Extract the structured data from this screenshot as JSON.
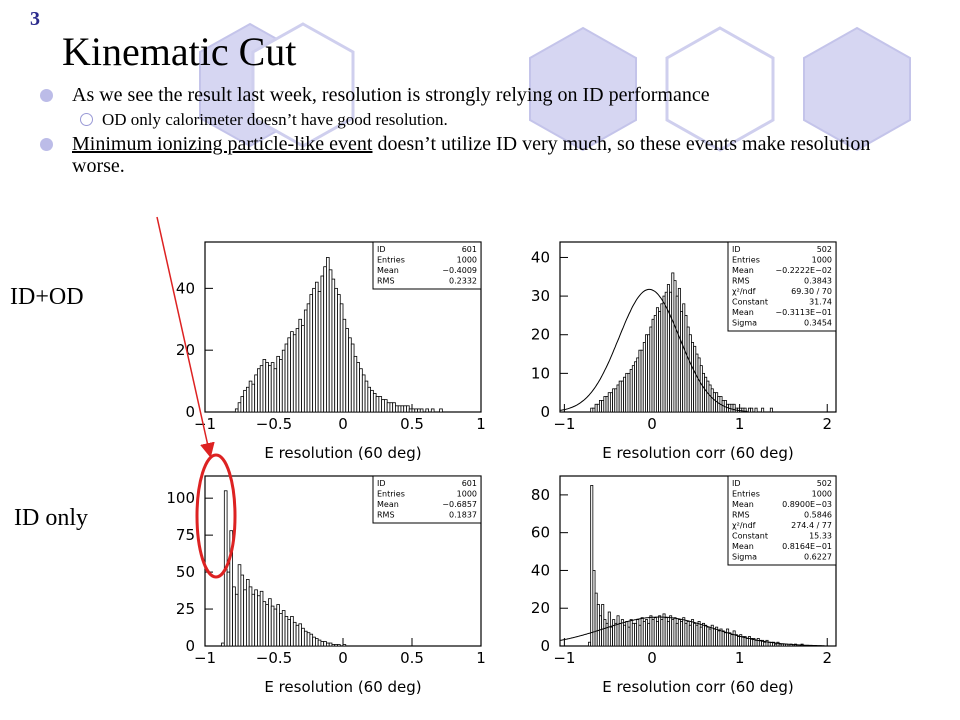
{
  "slide": {
    "number": "3",
    "title": "Kinematic Cut",
    "bullets": [
      {
        "level": 1,
        "text": "As we see the result last week, resolution is strongly relying on ID performance"
      },
      {
        "level": 2,
        "text": "OD only calorimeter doesn’t have good resolution."
      },
      {
        "level": 1,
        "text_underlined": "Minimum ionizing particle-like event",
        "text_rest": " doesn’t utilize ID very much, so these events make resolution worse."
      }
    ],
    "row_labels": [
      "ID+OD",
      "ID only"
    ],
    "colors": {
      "accent": "#2a2a8c",
      "hexagon_fill": "#d6d6f2",
      "hexagon_stroke": "#c4c4ea",
      "annotation": "#dd2222"
    }
  },
  "chart_data": [
    {
      "type": "histogram",
      "xlabel": "E resolution (60 deg)",
      "xlim": [
        -1,
        1
      ],
      "ylim": [
        0,
        55
      ],
      "xticks": [
        -1,
        -0.5,
        0,
        0.5,
        1
      ],
      "xtick_labels": [
        "−1",
        "−0.5",
        "0",
        "0.5",
        "1"
      ],
      "yticks": [
        0,
        20,
        40
      ],
      "ytick_labels": [
        "0",
        "20",
        "40"
      ],
      "stats": [
        [
          "ID",
          "601"
        ],
        [
          "Entries",
          "1000"
        ],
        [
          "Mean",
          "−0.4009"
        ],
        [
          "RMS",
          "0.2332"
        ]
      ],
      "bin_edges_from": -1.0,
      "bin_width": 0.02,
      "values": [
        0,
        0,
        0,
        0,
        0,
        0,
        0,
        0,
        0,
        0,
        0,
        1,
        3,
        5,
        7,
        8,
        10,
        9,
        12,
        14,
        15,
        17,
        16,
        15,
        16,
        14,
        18,
        17,
        20,
        22,
        24,
        26,
        25,
        27,
        30,
        28,
        33,
        35,
        38,
        40,
        42,
        39,
        44,
        47,
        50,
        46,
        43,
        40,
        38,
        35,
        30,
        27,
        24,
        22,
        18,
        16,
        14,
        12,
        10,
        8,
        7,
        6,
        5,
        5,
        4,
        4,
        3,
        3,
        3,
        2,
        2,
        2,
        2,
        2,
        1,
        1,
        1,
        1,
        1,
        0,
        1,
        0,
        1,
        0,
        0,
        1,
        0,
        0,
        0,
        0,
        0,
        0,
        0,
        0,
        0,
        0,
        0,
        0,
        0,
        0
      ]
    },
    {
      "type": "histogram",
      "xlabel": "E resolution corr (60 deg)",
      "xlim": [
        -1.05,
        2.1
      ],
      "ylim": [
        0,
        44
      ],
      "xticks": [
        -1,
        0,
        1,
        2
      ],
      "xtick_labels": [
        "−1",
        "0",
        "1",
        "2"
      ],
      "yticks": [
        0,
        10,
        20,
        30,
        40
      ],
      "ytick_labels": [
        "0",
        "10",
        "20",
        "30",
        "40"
      ],
      "stats": [
        [
          "ID",
          "502"
        ],
        [
          "Entries",
          "1000"
        ],
        [
          "Mean",
          "−0.2222E−02"
        ],
        [
          "RMS",
          "0.3843"
        ],
        [
          "χ²/ndf",
          "69.30  /  70"
        ],
        [
          "Constant",
          "31.74"
        ],
        [
          "Mean",
          "−0.3113E−01"
        ],
        [
          "Sigma",
          "0.3454"
        ]
      ],
      "fit": {
        "function": "gaussian",
        "constant": 31.74,
        "mean": -0.03113,
        "sigma": 0.3454
      },
      "bin_edges_from": -1.0,
      "bin_width": 0.025,
      "values": [
        0,
        0,
        0,
        0,
        0,
        0,
        0,
        0,
        0,
        0,
        0,
        0,
        1,
        1,
        2,
        2,
        3,
        3,
        4,
        4,
        5,
        5,
        6,
        6,
        7,
        8,
        8,
        9,
        10,
        10,
        11,
        12,
        13,
        14,
        16,
        16,
        18,
        20,
        20,
        22,
        24,
        25,
        27,
        26,
        28,
        30,
        31,
        33,
        31,
        36,
        34,
        30,
        32,
        26,
        28,
        25,
        22,
        20,
        18,
        17,
        15,
        14,
        12,
        10,
        9,
        8,
        7,
        6,
        5,
        5,
        4,
        4,
        3,
        3,
        2,
        2,
        2,
        2,
        1,
        1,
        1,
        1,
        1,
        0,
        1,
        1,
        0,
        1,
        0,
        0,
        1,
        0,
        0,
        0,
        1,
        0,
        0,
        0,
        0,
        0,
        0,
        0,
        0,
        0,
        0,
        0,
        0,
        0,
        0,
        0,
        0,
        0,
        0,
        0,
        0,
        0,
        0,
        0,
        0,
        0
      ]
    },
    {
      "type": "histogram",
      "xlabel": "E resolution (60 deg)",
      "xlim": [
        -1,
        1
      ],
      "ylim": [
        0,
        115
      ],
      "xticks": [
        -1,
        -0.5,
        0,
        0.5,
        1
      ],
      "xtick_labels": [
        "−1",
        "−0.5",
        "0",
        "0.5",
        "1"
      ],
      "yticks": [
        0,
        25,
        50,
        75,
        100
      ],
      "ytick_labels": [
        "0",
        "25",
        "50",
        "75",
        "100"
      ],
      "stats": [
        [
          "ID",
          "601"
        ],
        [
          "Entries",
          "1000"
        ],
        [
          "Mean",
          "−0.6857"
        ],
        [
          "RMS",
          "0.1837"
        ]
      ],
      "bin_edges_from": -1.0,
      "bin_width": 0.02,
      "values": [
        0,
        0,
        0,
        0,
        0,
        0,
        2,
        105,
        50,
        78,
        40,
        35,
        55,
        48,
        38,
        45,
        40,
        35,
        38,
        34,
        37,
        30,
        28,
        32,
        27,
        25,
        28,
        22,
        24,
        20,
        18,
        20,
        16,
        14,
        15,
        12,
        10,
        9,
        8,
        6,
        5,
        4,
        3,
        3,
        2,
        2,
        1,
        1,
        1,
        0,
        1,
        0,
        0,
        0,
        0,
        0,
        0,
        0,
        0,
        0,
        0,
        0,
        0,
        0,
        0,
        0,
        0,
        0,
        0,
        0,
        0,
        0,
        0,
        0,
        0,
        0,
        0,
        0,
        0,
        0,
        0,
        0,
        0,
        0,
        0,
        0,
        0,
        0,
        0,
        0,
        0,
        0,
        0,
        0,
        0,
        0,
        0,
        0,
        0,
        0
      ]
    },
    {
      "type": "histogram",
      "xlabel": "E resolution corr (60 deg)",
      "xlim": [
        -1.05,
        2.1
      ],
      "ylim": [
        0,
        90
      ],
      "xticks": [
        -1,
        0,
        1,
        2
      ],
      "xtick_labels": [
        "−1",
        "0",
        "1",
        "2"
      ],
      "yticks": [
        0,
        20,
        40,
        60,
        80
      ],
      "ytick_labels": [
        "0",
        "20",
        "40",
        "60",
        "80"
      ],
      "stats": [
        [
          "ID",
          "502"
        ],
        [
          "Entries",
          "1000"
        ],
        [
          "Mean",
          "0.8900E−03"
        ],
        [
          "RMS",
          "0.5846"
        ],
        [
          "χ²/ndf",
          "274.4  /  77"
        ],
        [
          "Constant",
          "15.33"
        ],
        [
          "Mean",
          "0.8164E−01"
        ],
        [
          "Sigma",
          "0.6227"
        ]
      ],
      "fit": {
        "function": "gaussian",
        "constant": 15.33,
        "mean": 0.08164,
        "sigma": 0.6227
      },
      "bin_edges_from": -1.0,
      "bin_width": 0.025,
      "values": [
        0,
        0,
        0,
        0,
        0,
        0,
        0,
        0,
        0,
        0,
        0,
        2,
        85,
        40,
        28,
        22,
        16,
        22,
        14,
        12,
        18,
        10,
        14,
        12,
        16,
        12,
        14,
        11,
        13,
        10,
        14,
        12,
        12,
        14,
        11,
        15,
        13,
        14,
        12,
        16,
        14,
        15,
        13,
        16,
        14,
        17,
        15,
        13,
        16,
        14,
        15,
        12,
        14,
        13,
        15,
        12,
        13,
        11,
        14,
        12,
        11,
        13,
        10,
        12,
        11,
        10,
        9,
        11,
        9,
        10,
        8,
        9,
        8,
        7,
        9,
        7,
        6,
        8,
        6,
        5,
        6,
        5,
        5,
        4,
        5,
        4,
        4,
        3,
        4,
        3,
        3,
        2,
        3,
        2,
        2,
        2,
        1,
        2,
        1,
        1,
        1,
        1,
        0,
        1,
        0,
        1,
        0,
        0,
        1,
        0,
        0,
        0,
        0,
        0,
        0,
        0,
        0,
        0,
        0,
        0
      ]
    }
  ]
}
